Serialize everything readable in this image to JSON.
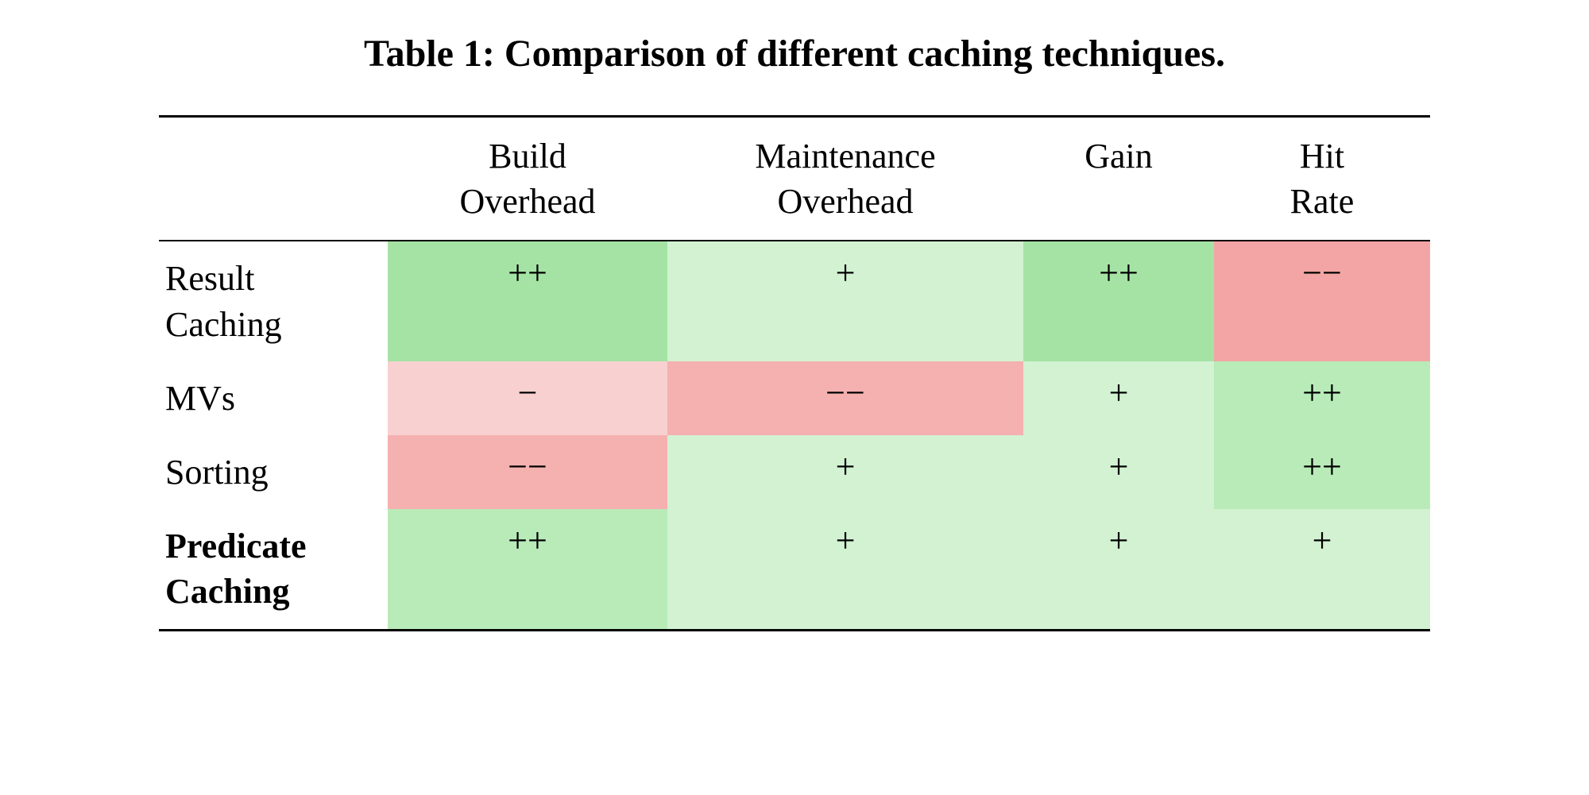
{
  "table": {
    "title": "Table 1: Comparison of different caching techniques.",
    "type": "heatmap-table",
    "colors": {
      "green_strong": "#a5e3a5",
      "green_medium": "#b8ebb8",
      "green_light": "#d2f2d2",
      "red_strong": "#f3a5a5",
      "red_medium": "#f5b0b0",
      "red_light": "#f8d0d0",
      "white": "#ffffff",
      "text": "#000000"
    },
    "title_fontsize": 48,
    "cell_fontsize": 44,
    "columns": [
      {
        "label_line1": "",
        "label_line2": ""
      },
      {
        "label_line1": "Build",
        "label_line2": "Overhead"
      },
      {
        "label_line1": "Maintenance",
        "label_line2": "Overhead"
      },
      {
        "label_line1": "Gain",
        "label_line2": ""
      },
      {
        "label_line1": "Hit",
        "label_line2": "Rate"
      }
    ],
    "rows": [
      {
        "label_line1": "Result",
        "label_line2": "Caching",
        "bold": false,
        "cells": [
          {
            "symbol": "++",
            "bg": "#a5e3a5"
          },
          {
            "symbol": "+",
            "bg": "#d2f2d2"
          },
          {
            "symbol": "++",
            "bg": "#a5e3a5"
          },
          {
            "symbol": "−−",
            "bg": "#f3a5a5"
          }
        ]
      },
      {
        "label_line1": "MVs",
        "label_line2": "",
        "bold": false,
        "cells": [
          {
            "symbol": "−",
            "bg": "#f8d0d0"
          },
          {
            "symbol": "−−",
            "bg": "#f5b0b0"
          },
          {
            "symbol": "+",
            "bg": "#d2f2d2"
          },
          {
            "symbol": "++",
            "bg": "#b8ebb8"
          }
        ]
      },
      {
        "label_line1": "Sorting",
        "label_line2": "",
        "bold": false,
        "cells": [
          {
            "symbol": "−−",
            "bg": "#f5b0b0"
          },
          {
            "symbol": "+",
            "bg": "#d2f2d2"
          },
          {
            "symbol": "+",
            "bg": "#d2f2d2"
          },
          {
            "symbol": "++",
            "bg": "#b8ebb8"
          }
        ]
      },
      {
        "label_line1": "Predicate",
        "label_line2": "Caching",
        "bold": true,
        "cells": [
          {
            "symbol": "++",
            "bg": "#b8ebb8"
          },
          {
            "symbol": "+",
            "bg": "#d2f2d2"
          },
          {
            "symbol": "+",
            "bg": "#d2f2d2"
          },
          {
            "symbol": "+",
            "bg": "#d2f2d2"
          }
        ]
      }
    ]
  }
}
